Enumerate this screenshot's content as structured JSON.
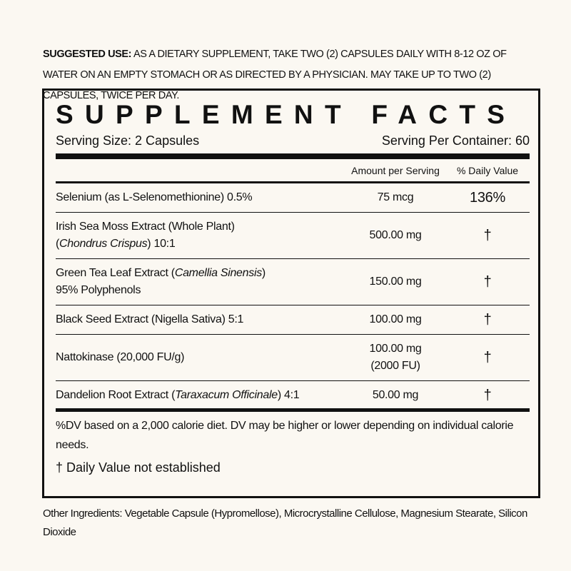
{
  "suggested_use": {
    "label": "SUGGESTED USE:",
    "text": "AS A DIETARY SUPPLEMENT, TAKE TWO (2) CAPSULES DAILY WITH 8-12 OZ OF WATER ON AN EMPTY STOMACH OR AS DIRECTED BY A PHYSICIAN. MAY TAKE UP TO TWO (2) CAPSULES, TWICE PER DAY."
  },
  "facts": {
    "title": "SUPPLEMENT FACTS",
    "serving_size": "Serving Size: 2 Capsules",
    "servings_per_container": "Serving Per Container: 60",
    "columns": [
      "Amount per Serving",
      "% Daily Value"
    ],
    "rows": [
      {
        "name": [
          [
            "Selenium (as L-Selenomethionine) 0.5%"
          ]
        ],
        "amount": [
          "75 mcg"
        ],
        "dv": "136%"
      },
      {
        "name": [
          [
            "Irish Sea Moss Extract (Whole Plant)"
          ],
          [
            "(",
            {
              "text": "Chondrus Crispus",
              "italic": true
            },
            ") 10:1"
          ]
        ],
        "amount": [
          "500.00 mg"
        ],
        "dv": "†"
      },
      {
        "name": [
          [
            "Green Tea Leaf Extract (",
            {
              "text": "Camellia Sinensis",
              "italic": true
            },
            ")"
          ],
          [
            "95% Polyphenols"
          ]
        ],
        "amount": [
          "150.00 mg"
        ],
        "dv": "†"
      },
      {
        "name": [
          [
            "Black Seed Extract (Nigella Sativa) 5:1"
          ]
        ],
        "amount": [
          "100.00 mg"
        ],
        "dv": "†"
      },
      {
        "name": [
          [
            "Nattokinase (20,000 FU/g)"
          ]
        ],
        "amount": [
          "100.00 mg",
          "(2000 FU)"
        ],
        "dv": "†"
      },
      {
        "name": [
          [
            "Dandelion Root Extract (",
            {
              "text": "Taraxacum Officinale",
              "italic": true
            },
            ") 4:1"
          ]
        ],
        "amount": [
          "50.00 mg"
        ],
        "dv": "†"
      }
    ],
    "footnote": "%DV based on a 2,000 calorie diet. DV may be higher or lower depending on individual calorie needs.",
    "dagger_note": "† Daily Value not established"
  },
  "other_ingredients": "Other Ingredients: Vegetable Capsule (Hypromellose), Microcrystalline Cellulose, Magnesium Stearate, Silicon Dioxide"
}
